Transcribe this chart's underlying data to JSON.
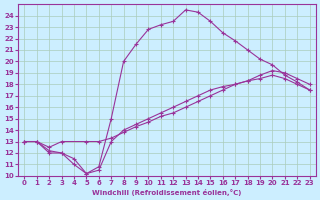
{
  "xlabel": "Windchill (Refroidissement éolien,°C)",
  "bg_color": "#cceeff",
  "line_color": "#993399",
  "grid_color": "#aaccbb",
  "xlim": [
    -0.5,
    23.5
  ],
  "ylim": [
    10,
    25
  ],
  "xticks": [
    0,
    1,
    2,
    3,
    4,
    5,
    6,
    7,
    8,
    9,
    10,
    11,
    12,
    13,
    14,
    15,
    16,
    17,
    18,
    19,
    20,
    21,
    22,
    23
  ],
  "yticks": [
    10,
    11,
    12,
    13,
    14,
    15,
    16,
    17,
    18,
    19,
    20,
    21,
    22,
    23,
    24
  ],
  "line1_x": [
    0,
    1,
    2,
    3,
    4,
    5,
    6,
    7,
    8,
    9,
    10,
    11,
    12,
    13,
    14,
    15,
    16,
    17,
    18,
    19,
    20,
    21,
    22,
    23
  ],
  "line1_y": [
    13,
    13,
    12,
    12,
    11,
    10.2,
    10.8,
    15.0,
    20.0,
    21.5,
    22.8,
    23.2,
    23.5,
    24.5,
    24.3,
    23.5,
    22.5,
    21.8,
    21.0,
    20.2,
    19.7,
    18.8,
    18.2,
    17.5
  ],
  "line2_x": [
    0,
    1,
    2,
    3,
    5,
    6,
    7,
    8,
    9,
    10,
    11,
    12,
    13,
    14,
    15,
    16,
    17,
    18,
    19,
    20,
    21,
    22,
    23
  ],
  "line2_y": [
    13,
    13,
    12.5,
    13,
    13,
    13,
    13.3,
    13.8,
    14.3,
    14.7,
    15.2,
    15.5,
    16.0,
    16.5,
    17.0,
    17.5,
    18.0,
    18.3,
    18.8,
    19.2,
    19.0,
    18.5,
    18.0
  ],
  "line3_x": [
    0,
    1,
    2,
    3,
    4,
    5,
    6,
    7,
    8,
    9,
    10,
    11,
    12,
    13,
    14,
    15,
    16,
    17,
    18,
    19,
    20,
    21,
    22,
    23
  ],
  "line3_y": [
    13,
    13,
    12.2,
    12,
    11.5,
    10.2,
    10.5,
    13.0,
    14.0,
    14.5,
    15.0,
    15.5,
    16.0,
    16.5,
    17.0,
    17.5,
    17.8,
    18.0,
    18.3,
    18.5,
    18.8,
    18.5,
    18.0,
    17.5
  ]
}
